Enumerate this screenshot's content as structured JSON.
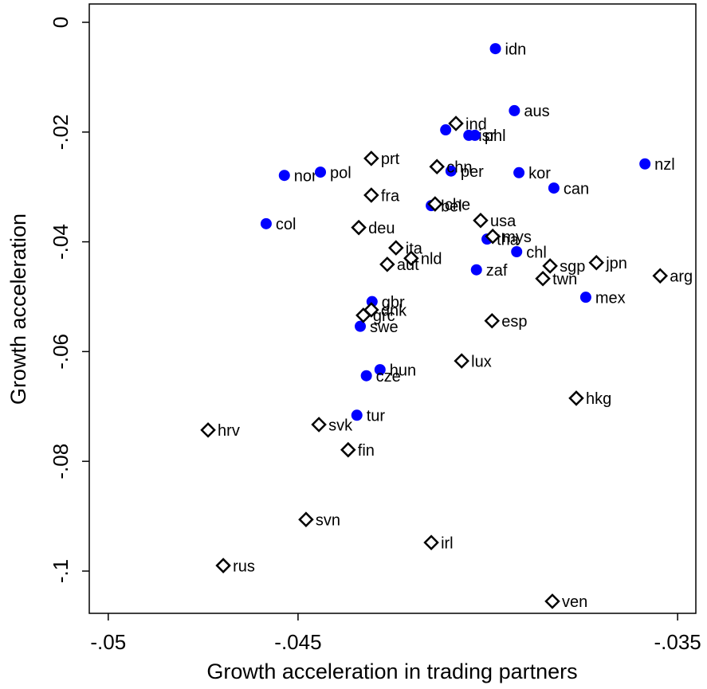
{
  "chart_data": {
    "type": "scatter",
    "xlabel": "Growth acceleration in trading partners",
    "ylabel": "Growth acceleration",
    "xlim": [
      -0.0505,
      -0.03452
    ],
    "ylim": [
      -0.1077,
      0.00334
    ],
    "xticks": [
      {
        "value": -0.05,
        "label": "-.05"
      },
      {
        "value": -0.045,
        "label": "-.045"
      },
      {
        "value": -0.035,
        "label": "-.035"
      }
    ],
    "yticks": [
      0,
      {
        "value": -0.02,
        "label": "-.02"
      },
      {
        "value": -0.04,
        "label": "-.04"
      },
      {
        "value": -0.06,
        "label": "-.06"
      },
      {
        "value": -0.08,
        "label": "-.08"
      },
      {
        "value": -0.1,
        "label": "-.1"
      }
    ],
    "series": [
      {
        "color": "#0000ff",
        "marker": "circle",
        "labels": [
          "idn",
          "aus",
          null,
          "isr",
          "phl",
          "nzl",
          "nor",
          "pol",
          "per",
          "kor",
          "can",
          "col",
          "bel",
          "tha",
          "chl",
          "zaf",
          "mex",
          "gbr",
          "swe",
          "hun",
          "cze",
          "tur"
        ],
        "x": [
          -0.0398,
          -0.0393,
          -0.04111,
          -0.0405,
          -0.04034,
          -0.03586,
          -0.04536,
          -0.04441,
          -0.04097,
          -0.03918,
          -0.03826,
          -0.04584,
          -0.04149,
          -0.04002,
          -0.03924,
          -0.0403,
          -0.03742,
          -0.04305,
          -0.04336,
          -0.04284,
          -0.0432,
          -0.04345
        ],
        "values": [
          -0.0048,
          -0.0161,
          -0.0196,
          -0.0206,
          -0.0206,
          -0.0258,
          -0.0279,
          -0.0273,
          -0.0271,
          -0.0274,
          -0.0302,
          -0.0367,
          -0.0334,
          -0.0395,
          -0.0418,
          -0.0451,
          -0.0501,
          -0.0509,
          -0.0554,
          -0.0633,
          -0.0644,
          -0.0716
        ]
      },
      {
        "color": "#000000",
        "marker": "diamond",
        "labels": [
          "ind",
          "chn",
          "che",
          "mys",
          "prt",
          "fra",
          "deu",
          "usa",
          "ita",
          "nld",
          "aut",
          "sgp",
          "jpn",
          "twn",
          "arg",
          "dnk",
          "grc",
          "esp",
          "lux",
          "hkg",
          "hrv",
          "svk",
          "fin",
          "svn",
          "irl",
          "rus",
          "ven"
        ],
        "x": [
          -0.04084,
          -0.04134,
          -0.04139,
          -0.03987,
          -0.04307,
          -0.04307,
          -0.0434,
          -0.04019,
          -0.04242,
          -0.04202,
          -0.04265,
          -0.03836,
          -0.03714,
          -0.03855,
          -0.03546,
          -0.04307,
          -0.04328,
          -0.03989,
          -0.04069,
          -0.03767,
          -0.04737,
          -0.04445,
          -0.04368,
          -0.04479,
          -0.04149,
          -0.04697,
          -0.0383
        ],
        "values": [
          -0.01843,
          -0.0263,
          -0.0331,
          -0.039,
          -0.0248,
          -0.0315,
          -0.0374,
          -0.0361,
          -0.0411,
          -0.043,
          -0.0441,
          -0.0444,
          -0.0438,
          -0.0467,
          -0.0462,
          -0.0524,
          -0.0534,
          -0.0544,
          -0.0617,
          -0.0685,
          -0.0743,
          -0.0733,
          -0.0779,
          -0.0906,
          -0.0948,
          -0.099,
          -0.1055
        ]
      }
    ]
  }
}
